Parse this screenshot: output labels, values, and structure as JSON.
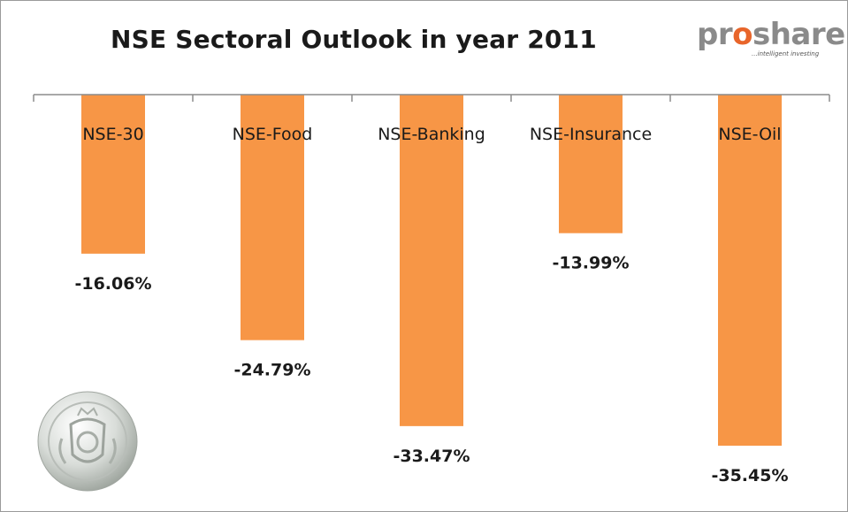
{
  "logo": {
    "prefix": "pr",
    "highlight": "o",
    "suffix": "share",
    "tagline": "...intelligent investing"
  },
  "seal": {
    "icon": "coat-of-arms-seal-icon"
  },
  "colors": {
    "bar": "#F79646",
    "axis": "#8c8c8c",
    "text": "#1a1a1a"
  },
  "chart_data": {
    "type": "bar",
    "title": "NSE Sectoral Outlook in year 2011",
    "categories": [
      "NSE-30",
      "NSE-Food",
      "NSE-Banking",
      "NSE-Insurance",
      "NSE-Oil"
    ],
    "values": [
      -16.06,
      -24.79,
      -33.47,
      -13.99,
      -35.45
    ],
    "value_labels": [
      "-16.06%",
      "-24.79%",
      "-33.47%",
      "-13.99%",
      "-35.45%"
    ],
    "ylim": [
      -40,
      0
    ],
    "grid": false,
    "legend": "none"
  }
}
